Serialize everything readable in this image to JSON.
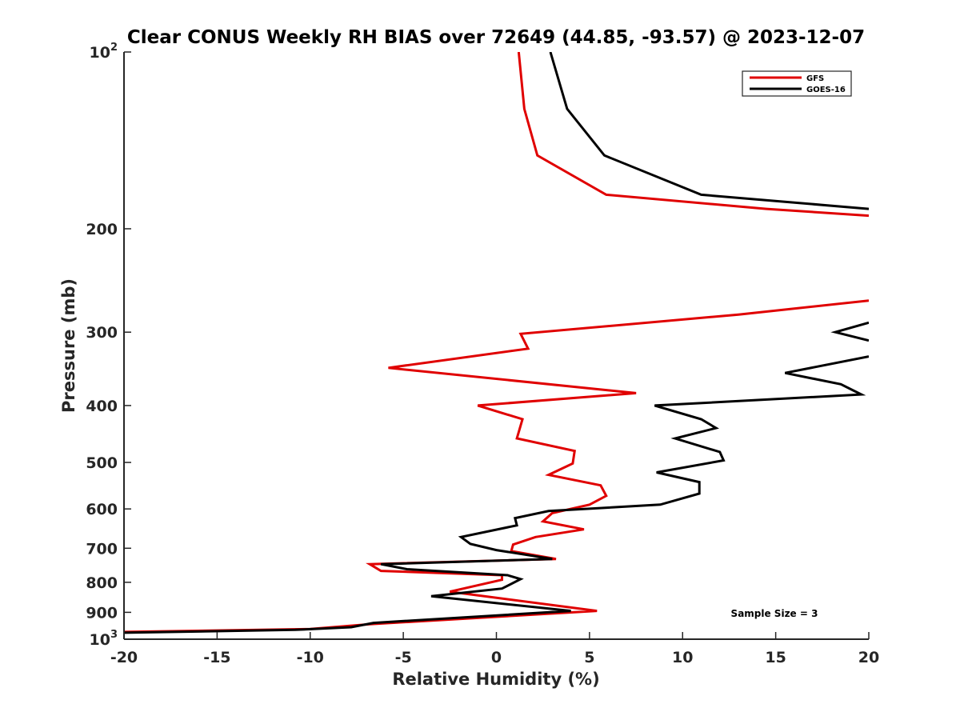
{
  "chart_data": {
    "type": "line",
    "title": "Clear CONUS Weekly RH BIAS over 72649 (44.85, -93.57) @ 2023-12-07",
    "xlabel": "Relative Humidity (%)",
    "ylabel": "Pressure (mb)",
    "xlim": [
      -20,
      20
    ],
    "ylim": [
      100,
      1000
    ],
    "y_scale": "log",
    "y_reversed": true,
    "x_ticks": [
      -20,
      -15,
      -10,
      -5,
      0,
      5,
      10,
      15,
      20
    ],
    "x_tick_labels": [
      "-20",
      "-15",
      "-10",
      "-5",
      "0",
      "5",
      "10",
      "15",
      "20"
    ],
    "y_ticks": [
      100,
      200,
      300,
      400,
      500,
      600,
      700,
      800,
      900,
      1000
    ],
    "y_tick_labels": [
      {
        "base": "10",
        "exp": "2"
      },
      {
        "base": "200",
        "exp": ""
      },
      {
        "base": "300",
        "exp": ""
      },
      {
        "base": "400",
        "exp": ""
      },
      {
        "base": "500",
        "exp": ""
      },
      {
        "base": "600",
        "exp": ""
      },
      {
        "base": "700",
        "exp": ""
      },
      {
        "base": "800",
        "exp": ""
      },
      {
        "base": "900",
        "exp": ""
      },
      {
        "base": "10",
        "exp": "3"
      }
    ],
    "grid": false,
    "legend_position": "top-right",
    "annotation": "Sample Size = 3",
    "series": [
      {
        "name": "GFS",
        "color": "#e00000",
        "segments": [
          [
            [
              1.2,
              100
            ],
            [
              1.5,
              125
            ],
            [
              2.2,
              150
            ],
            [
              5.9,
              175
            ],
            [
              14.5,
              185
            ],
            [
              20,
              190
            ]
          ],
          [
            [
              20,
              265
            ],
            [
              13,
              280
            ],
            [
              1.3,
              302
            ],
            [
              1.7,
              320
            ],
            [
              -5.8,
              345
            ],
            [
              7.5,
              381
            ],
            [
              -1.0,
              400
            ],
            [
              1.4,
              422
            ],
            [
              1.1,
              455
            ],
            [
              4.2,
              478
            ],
            [
              4.1,
              502
            ],
            [
              2.8,
              525
            ],
            [
              5.6,
              547
            ],
            [
              5.9,
              570
            ],
            [
              5.0,
              590
            ],
            [
              3.0,
              610
            ],
            [
              2.5,
              630
            ],
            [
              4.7,
              650
            ],
            [
              2.1,
              670
            ],
            [
              0.9,
              690
            ],
            [
              0.8,
              708
            ],
            [
              3.2,
              730
            ],
            [
              -6.8,
              745
            ],
            [
              -6.2,
              765
            ],
            [
              0.3,
              778
            ],
            [
              0.3,
              792
            ],
            [
              -2.5,
              830
            ],
            [
              5.4,
              895
            ],
            [
              -6.8,
              943
            ],
            [
              -10,
              961
            ],
            [
              -20,
              972
            ]
          ]
        ]
      },
      {
        "name": "GOES-16",
        "color": "#000000",
        "segments": [
          [
            [
              2.9,
              100
            ],
            [
              3.8,
              125
            ],
            [
              5.8,
              150
            ],
            [
              11.0,
              175
            ],
            [
              20,
              185
            ]
          ],
          [
            [
              20,
              289
            ],
            [
              18.2,
              300
            ],
            [
              20,
              310
            ]
          ],
          [
            [
              20,
              330
            ],
            [
              15.5,
              352
            ],
            [
              18.5,
              368
            ],
            [
              19.6,
              383
            ],
            [
              8.5,
              400
            ],
            [
              11.0,
              422
            ],
            [
              11.8,
              437
            ],
            [
              9.6,
              455
            ],
            [
              12.0,
              480
            ],
            [
              12.2,
              496
            ],
            [
              8.6,
              520
            ],
            [
              10.9,
              540
            ],
            [
              10.9,
              565
            ],
            [
              8.8,
              590
            ],
            [
              2.8,
              605
            ],
            [
              1.0,
              622
            ],
            [
              1.1,
              640
            ],
            [
              -1.9,
              670
            ],
            [
              -1.4,
              688
            ],
            [
              0.0,
              705
            ],
            [
              3.0,
              730
            ],
            [
              -6.2,
              745
            ],
            [
              -4.8,
              760
            ],
            [
              0.6,
              778
            ],
            [
              1.3,
              790
            ],
            [
              0.3,
              820
            ],
            [
              -3.5,
              845
            ],
            [
              4.0,
              895
            ],
            [
              -6.6,
              938
            ],
            [
              -7.8,
              954
            ],
            [
              -10.8,
              964
            ],
            [
              -20,
              975
            ]
          ]
        ]
      }
    ]
  }
}
